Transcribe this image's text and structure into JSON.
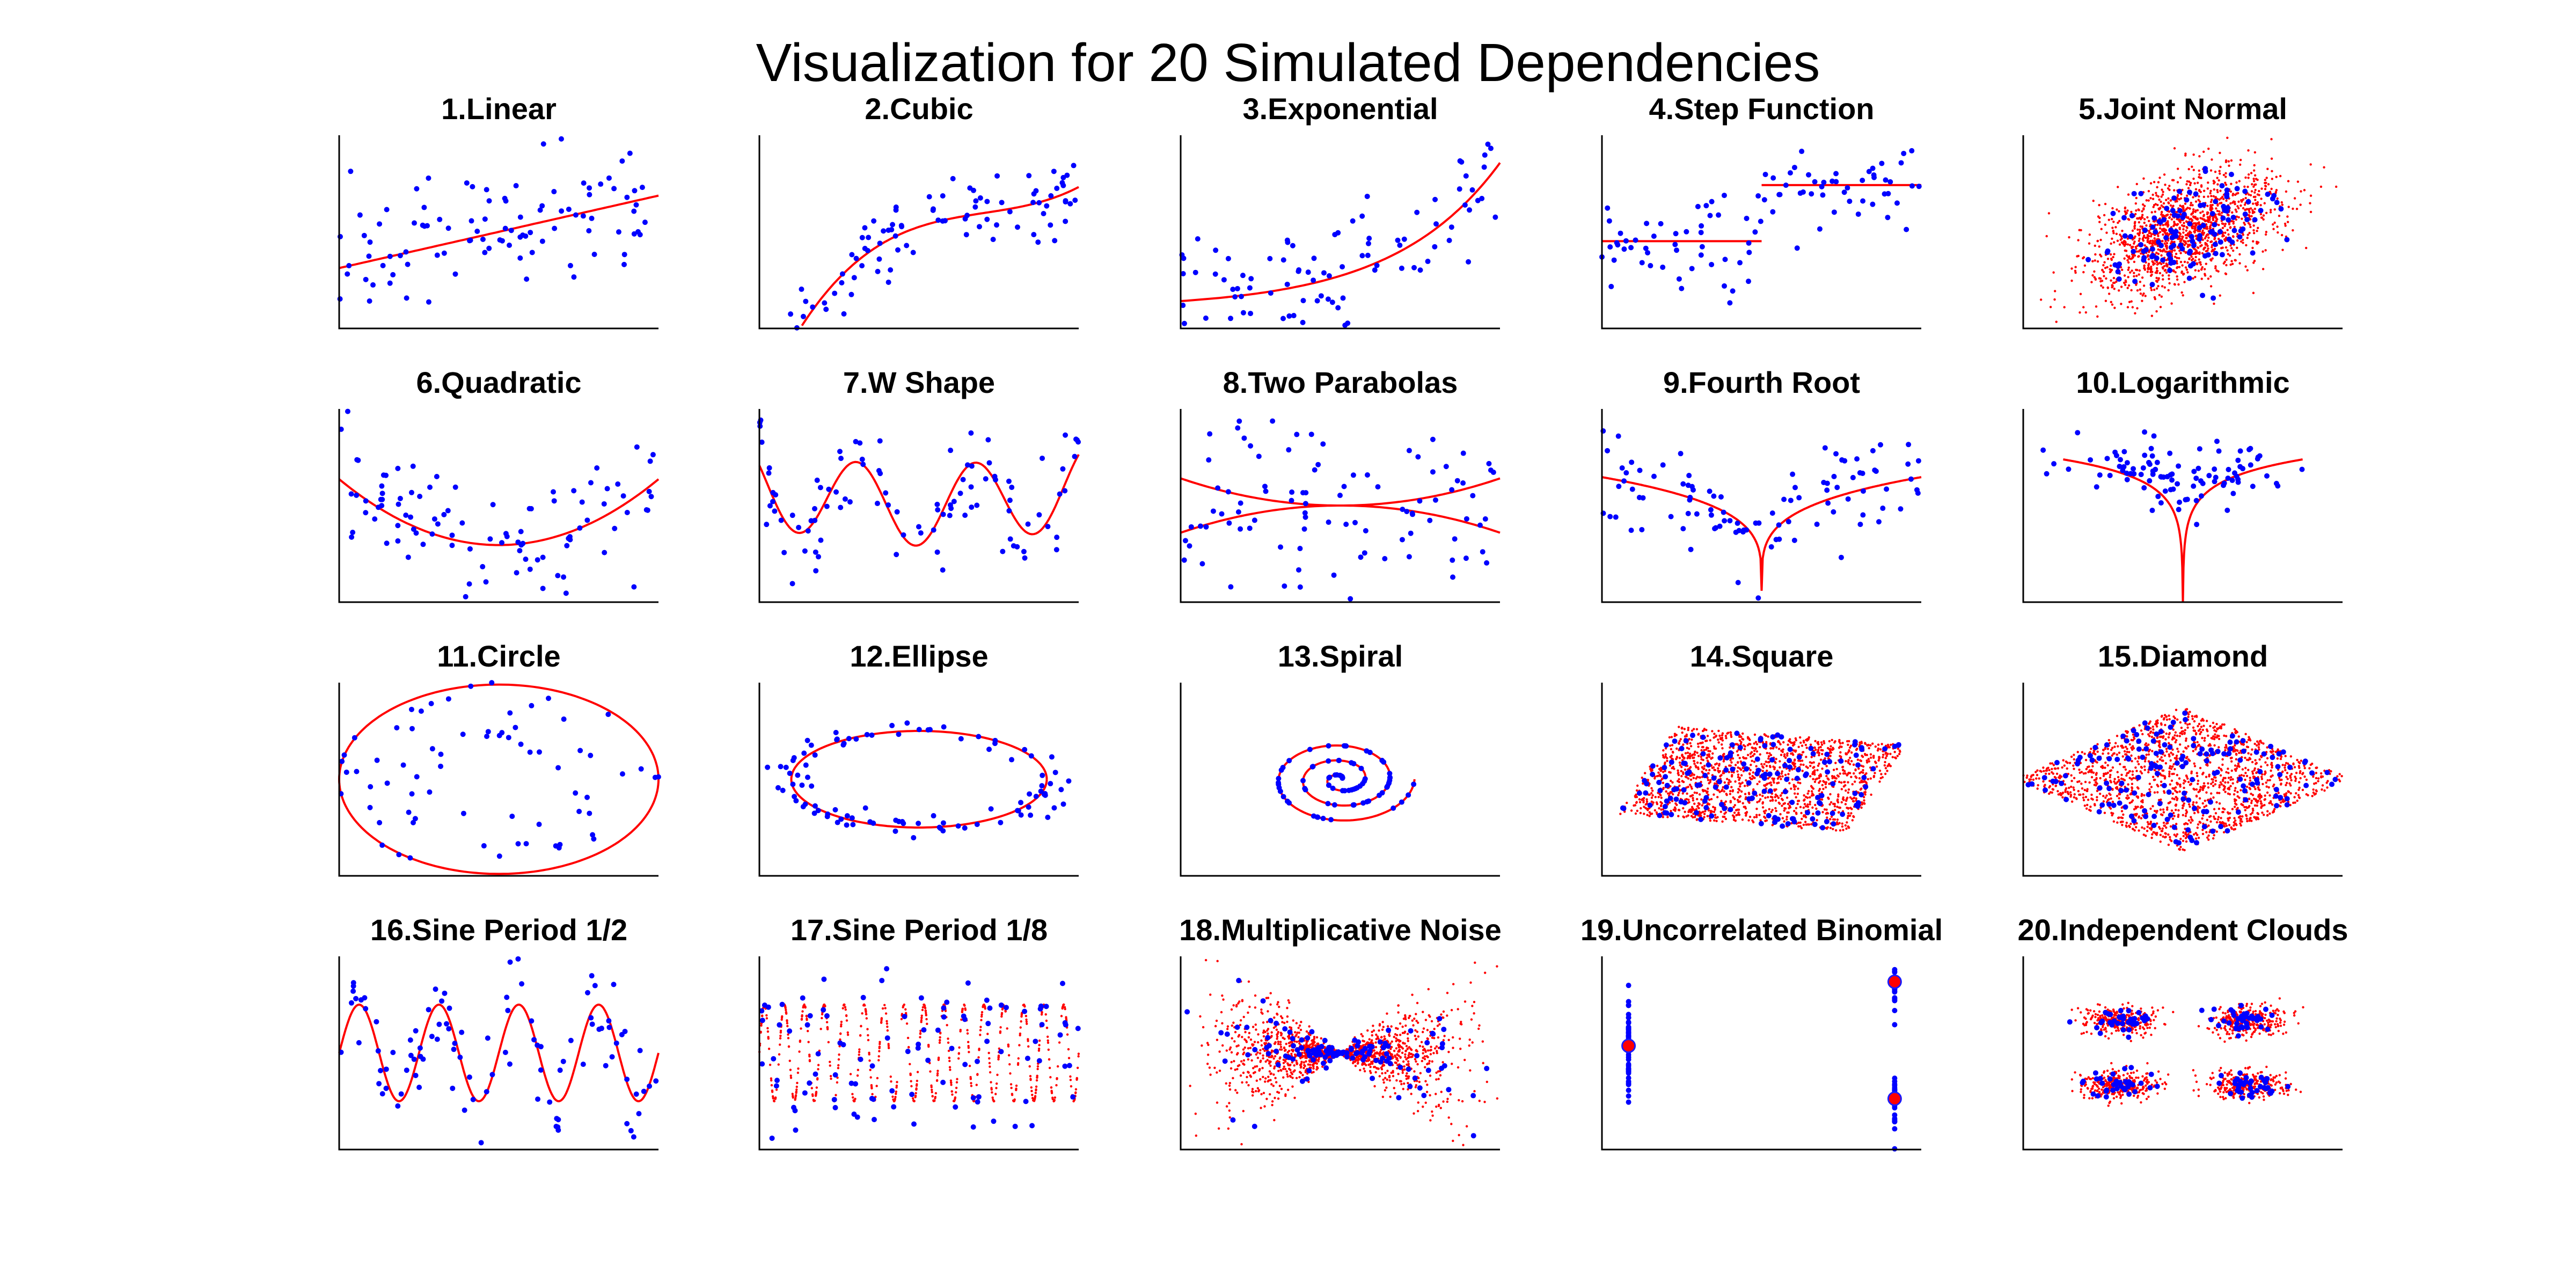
{
  "figure_title": "Visualization for 20 Simulated Dependencies",
  "colors": {
    "sample_points": "#0000ff",
    "true_dependency": "#ff0000",
    "axes": "#000000",
    "background": "#ffffff"
  },
  "chart_data": [
    {
      "index": 1,
      "title": "1.Linear",
      "type": "scatter",
      "curve": "linear",
      "xlim": [
        -1,
        1
      ],
      "ylim": [
        -1.6,
        1.6
      ]
    },
    {
      "index": 2,
      "title": "2.Cubic",
      "type": "scatter",
      "curve": "cubic",
      "xlim": [
        -1,
        1
      ],
      "ylim": [
        -1.6,
        1.6
      ]
    },
    {
      "index": 3,
      "title": "3.Exponential",
      "type": "scatter",
      "curve": "exponential",
      "xlim": [
        0,
        3
      ],
      "ylim": [
        0,
        24
      ]
    },
    {
      "index": 4,
      "title": "4.Step Function",
      "type": "scatter",
      "curve": "step",
      "xlim": [
        -1,
        1
      ],
      "ylim": [
        -0.9,
        2.2
      ]
    },
    {
      "index": 5,
      "title": "5.Joint Normal",
      "type": "scatter",
      "curve": "joint-normal",
      "xlim": [
        -3,
        3
      ],
      "ylim": [
        -3,
        3
      ]
    },
    {
      "index": 6,
      "title": "6.Quadratic",
      "type": "scatter",
      "curve": "quadratic",
      "xlim": [
        -1,
        1
      ],
      "ylim": [
        -0.4,
        1.8
      ]
    },
    {
      "index": 7,
      "title": "7.W Shape",
      "type": "scatter",
      "curve": "w-shape",
      "xlim": [
        -1,
        1
      ],
      "ylim": [
        -1,
        1.6
      ]
    },
    {
      "index": 8,
      "title": "8.Two Parabolas",
      "type": "scatter",
      "curve": "two-parabolas",
      "xlim": [
        -1,
        1
      ],
      "ylim": [
        -1.6,
        1.6
      ]
    },
    {
      "index": 9,
      "title": "9.Fourth Root",
      "type": "scatter",
      "curve": "fourth-root",
      "xlim": [
        -1,
        1
      ],
      "ylim": [
        -0.1,
        1.6
      ]
    },
    {
      "index": 10,
      "title": "10.Logarithmic",
      "type": "scatter",
      "curve": "logarithmic",
      "xlim": [
        -1,
        1
      ],
      "ylim": [
        -4,
        1.2
      ]
    },
    {
      "index": 11,
      "title": "11.Circle",
      "type": "scatter",
      "curve": "circle",
      "xlim": [
        -1,
        1
      ],
      "ylim": [
        -1,
        1
      ]
    },
    {
      "index": 12,
      "title": "12.Ellipse",
      "type": "scatter",
      "curve": "ellipse",
      "xlim": [
        -1.1,
        1.1
      ],
      "ylim": [
        -1,
        1
      ]
    },
    {
      "index": 13,
      "title": "13.Spiral",
      "type": "scatter",
      "curve": "spiral",
      "xlim": [
        -5,
        5
      ],
      "ylim": [
        -5,
        5
      ]
    },
    {
      "index": 14,
      "title": "14.Square",
      "type": "scatter",
      "curve": "square",
      "xlim": [
        -1.6,
        1.6
      ],
      "ylim": [
        -1.6,
        1.6
      ]
    },
    {
      "index": 15,
      "title": "15.Diamond",
      "type": "scatter",
      "curve": "diamond",
      "xlim": [
        -1.6,
        1.6
      ],
      "ylim": [
        -1.6,
        1.6
      ]
    },
    {
      "index": 16,
      "title": "16.Sine Period 1/2",
      "type": "scatter",
      "curve": "sine-half",
      "xlim": [
        -1,
        1
      ],
      "ylim": [
        -2,
        2
      ]
    },
    {
      "index": 17,
      "title": "17.Sine Period 1/8",
      "type": "scatter",
      "curve": "sine-eighth",
      "xlim": [
        -1,
        1
      ],
      "ylim": [
        -2,
        2
      ]
    },
    {
      "index": 18,
      "title": "18.Multiplicative Noise",
      "type": "scatter",
      "curve": "multiplicative",
      "xlim": [
        -3,
        3
      ],
      "ylim": [
        -3,
        3
      ]
    },
    {
      "index": 19,
      "title": "19.Uncorrelated Binomial",
      "type": "scatter",
      "curve": "binomial",
      "xlim": [
        -0.1,
        1.1
      ],
      "ylim": [
        -0.5,
        1.4
      ]
    },
    {
      "index": 20,
      "title": "20.Independent Clouds",
      "type": "scatter",
      "curve": "independent-clouds",
      "xlim": [
        -3,
        3
      ],
      "ylim": [
        -3,
        3
      ]
    }
  ]
}
